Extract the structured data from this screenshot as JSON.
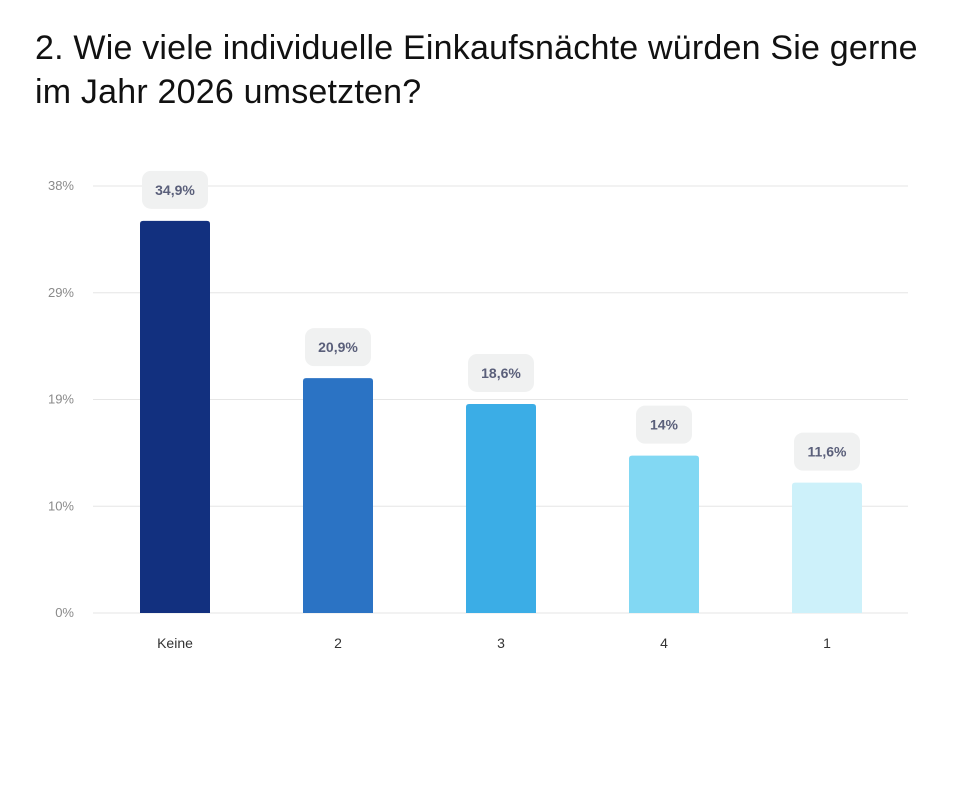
{
  "chart_data": {
    "type": "bar",
    "title": "2. Wie viele individuelle Einkaufsnächte würden Sie gerne im Jahr 2026 umsetzten?",
    "xlabel": "",
    "ylabel": "",
    "categories": [
      "Keine",
      "2",
      "3",
      "4",
      "1"
    ],
    "values": [
      34.9,
      20.9,
      18.6,
      14,
      11.6
    ],
    "data_labels": [
      "34,9%",
      "20,9%",
      "18,6%",
      "14%",
      "11,6%"
    ],
    "colors": [
      "#12307f",
      "#2b73c4",
      "#3bade6",
      "#82d8f3",
      "#cdf1fa"
    ],
    "ylim": [
      0,
      38
    ],
    "yticks": [
      0,
      9.5,
      19,
      28.5,
      38
    ],
    "ytick_labels": [
      "0%",
      "10%",
      "19%",
      "29%",
      "38%"
    ],
    "grid": true,
    "legend": "none"
  }
}
